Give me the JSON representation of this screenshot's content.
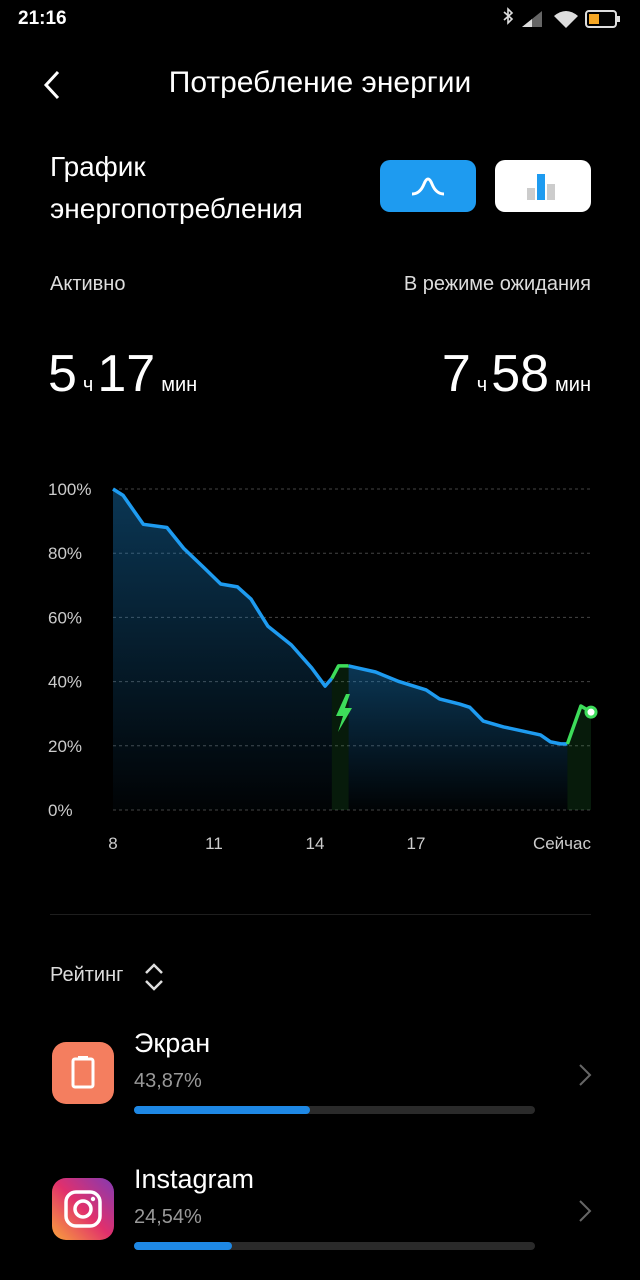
{
  "status_bar": {
    "time": "21:16"
  },
  "header": {
    "title": "Потребление энергии"
  },
  "section": {
    "title": "График энергопотребления"
  },
  "stats": {
    "active": {
      "label": "Активно",
      "hours": 5,
      "hours_unit": "ч",
      "minutes": 17,
      "minutes_unit": "мин"
    },
    "standby": {
      "label": "В режиме ожидания",
      "hours": 7,
      "hours_unit": "ч",
      "minutes": 58,
      "minutes_unit": "мин"
    }
  },
  "chart_data": {
    "type": "line",
    "x": [
      8,
      8.3,
      8.9,
      9.6,
      10.1,
      10.7,
      11.2,
      11.7,
      12.1,
      12.6,
      13.3,
      13.9,
      14.3,
      14.5,
      14.7,
      15,
      15.8,
      16.5,
      17.3,
      17.7,
      18.3,
      18.6,
      19,
      19.6,
      20.7,
      21,
      21.3,
      21.5,
      21.9,
      22.2
    ],
    "series": [
      {
        "color": "#1e9bf0",
        "values": [
          100,
          98,
          89,
          88,
          81.5,
          75.5,
          70.4,
          69.5,
          65.7,
          57.3,
          51.4,
          44.3,
          38.6,
          41,
          null,
          44.9,
          43,
          40,
          37.4,
          34.6,
          33,
          32,
          27.7,
          25.9,
          23.4,
          21.2,
          20.6,
          20.6,
          null,
          null
        ]
      },
      {
        "color": "#3ddc5a",
        "values": [
          null,
          null,
          null,
          null,
          null,
          null,
          null,
          null,
          null,
          null,
          null,
          null,
          null,
          41,
          44.9,
          44.9,
          null,
          null,
          null,
          null,
          null,
          null,
          null,
          null,
          null,
          null,
          null,
          20.6,
          32.4,
          30.5
        ]
      }
    ],
    "xlim": [
      8,
      22.2
    ],
    "xticks": [
      8,
      11,
      14,
      17,
      {
        "value": 22.2,
        "label": "Сейчас"
      }
    ],
    "ylim": [
      0,
      100
    ],
    "yticks": [
      {
        "value": 0,
        "label": "0%"
      },
      {
        "value": 20,
        "label": "20%"
      },
      {
        "value": 40,
        "label": "40%"
      },
      {
        "value": 60,
        "label": "60%"
      },
      {
        "value": 80,
        "label": "80%"
      },
      {
        "value": 100,
        "label": "100%"
      }
    ],
    "grid": true
  },
  "ranking": {
    "label": "Рейтинг",
    "items": [
      {
        "name": "Экран",
        "percent": 43.87,
        "percent_label": "43,87%"
      },
      {
        "name": "Instagram",
        "percent": 24.54,
        "percent_label": "24,54%"
      }
    ]
  }
}
